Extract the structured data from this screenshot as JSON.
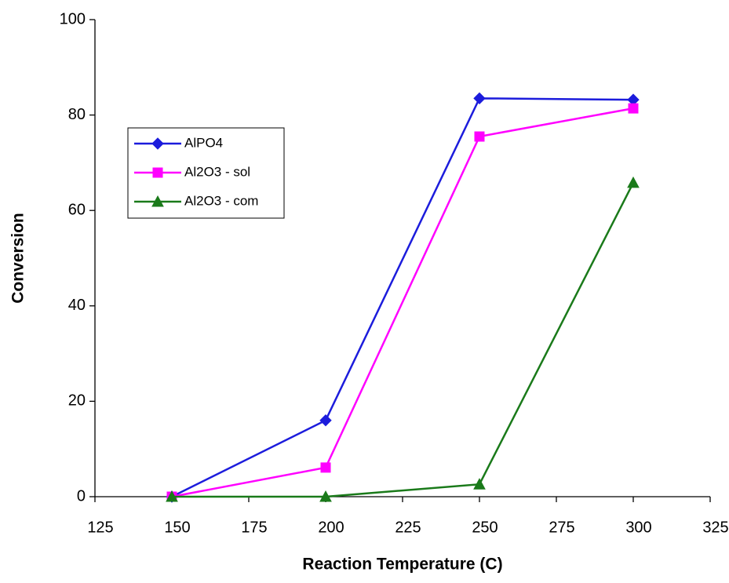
{
  "chart_data": {
    "type": "line",
    "x_label": "Reaction Temperature (C)",
    "y_label": "Conversion",
    "x": [
      150,
      200,
      250,
      300
    ],
    "series": [
      {
        "name": "AlPO4",
        "color": "#1c1cdc",
        "marker": "diamond",
        "values": [
          0,
          16,
          83.5,
          83.2
        ]
      },
      {
        "name": "Al2O3 - sol",
        "color": "#ff00ff",
        "marker": "square",
        "values": [
          0,
          6.1,
          75.5,
          81.4
        ]
      },
      {
        "name": "Al2O3 - com",
        "color": "#1a7a1a",
        "marker": "triangle",
        "values": [
          0,
          0,
          2.6,
          65.8
        ]
      }
    ],
    "xlim": [
      125,
      325
    ],
    "xticks": [
      125,
      150,
      175,
      200,
      225,
      250,
      275,
      300,
      325
    ],
    "ylim": [
      0,
      100
    ],
    "yticks": [
      0,
      20,
      40,
      60,
      80,
      100
    ],
    "grid": false,
    "legend": "left"
  }
}
